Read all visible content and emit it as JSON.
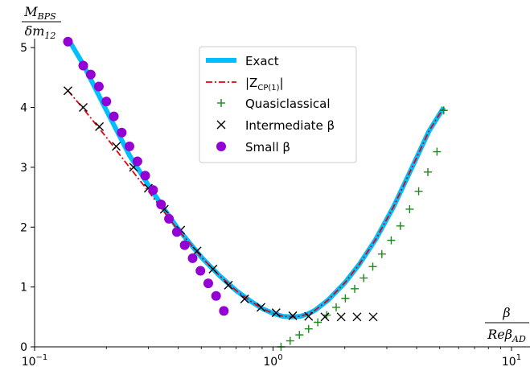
{
  "chart_data": {
    "type": "line",
    "xscale": "log",
    "xlim": [
      0.1,
      10
    ],
    "ylim": [
      0,
      5.15
    ],
    "x_ticks": [
      {
        "value": 0.1,
        "base": "10",
        "exp": "−1"
      },
      {
        "value": 1,
        "base": "10",
        "exp": "0"
      },
      {
        "value": 10,
        "base": "10",
        "exp": "1"
      }
    ],
    "y_ticks": [
      0,
      1,
      2,
      3,
      4,
      5
    ],
    "y_tick_labels": [
      "0",
      "1",
      "2",
      "3",
      "4",
      "5"
    ],
    "xlabel": {
      "numerator": "β",
      "denominator": "Reβ",
      "denominator_sub": "AD"
    },
    "ylabel": {
      "numerator": "M",
      "numerator_sub": "BPS",
      "denominator": "δm",
      "denominator_sub": "12"
    },
    "grid": false,
    "legend_position": "top-center",
    "legend": [
      {
        "key": "exact",
        "label": "Exact"
      },
      {
        "key": "zcp",
        "label_prefix": "|Z",
        "label_sub": "CP(1)",
        "label_suffix": "|"
      },
      {
        "key": "quasi",
        "label": "Quasiclassical"
      },
      {
        "key": "inter",
        "label": "Intermediate β"
      },
      {
        "key": "small",
        "label": "Small β"
      }
    ],
    "series": [
      {
        "key": "exact",
        "style": "line",
        "color": "#00bfff",
        "x": [
          0.138,
          0.16,
          0.2,
          0.25,
          0.3,
          0.35,
          0.4,
          0.45,
          0.5,
          0.55,
          0.6,
          0.7,
          0.8,
          0.9,
          1.0,
          1.1,
          1.2,
          1.3,
          1.4,
          1.5,
          1.7,
          2.0,
          2.3,
          2.7,
          3.2,
          3.8,
          4.5,
          5.2
        ],
        "y": [
          5.15,
          4.72,
          3.95,
          3.2,
          2.7,
          2.3,
          1.97,
          1.72,
          1.5,
          1.33,
          1.18,
          0.94,
          0.77,
          0.64,
          0.56,
          0.51,
          0.5,
          0.51,
          0.55,
          0.61,
          0.78,
          1.07,
          1.38,
          1.8,
          2.34,
          2.97,
          3.6,
          4.0
        ]
      },
      {
        "key": "zcp",
        "style": "dashdot",
        "color": "#e8000b",
        "x": [
          0.138,
          0.16,
          0.2,
          0.25,
          0.3,
          0.35,
          0.4,
          0.45,
          0.5,
          0.55,
          0.6,
          0.7,
          0.8,
          0.9,
          1.0,
          1.1,
          1.2,
          1.3,
          1.4,
          1.5,
          1.7,
          2.0,
          2.3,
          2.7,
          3.2,
          3.8,
          4.5,
          5.2
        ],
        "y": [
          4.28,
          3.98,
          3.5,
          3.0,
          2.6,
          2.25,
          1.95,
          1.72,
          1.5,
          1.33,
          1.18,
          0.94,
          0.77,
          0.64,
          0.56,
          0.51,
          0.5,
          0.51,
          0.55,
          0.61,
          0.78,
          1.07,
          1.38,
          1.8,
          2.34,
          2.97,
          3.6,
          4.0
        ]
      },
      {
        "key": "quasi",
        "style": "plus",
        "color": "#1a8a1a",
        "x": [
          1.08,
          1.18,
          1.29,
          1.41,
          1.54,
          1.68,
          1.84,
          2.01,
          2.2,
          2.4,
          2.62,
          2.86,
          3.13,
          3.42,
          3.74,
          4.08,
          4.46,
          4.87,
          5.2
        ],
        "y": [
          0.0,
          0.1,
          0.2,
          0.3,
          0.41,
          0.53,
          0.66,
          0.81,
          0.97,
          1.15,
          1.34,
          1.55,
          1.78,
          2.02,
          2.3,
          2.6,
          2.92,
          3.26,
          3.95
        ]
      },
      {
        "key": "inter",
        "style": "x",
        "color": "#000000",
        "x": [
          0.138,
          0.16,
          0.187,
          0.22,
          0.26,
          0.3,
          0.35,
          0.41,
          0.48,
          0.56,
          0.65,
          0.76,
          0.89,
          1.03,
          1.21,
          1.41,
          1.65,
          1.93,
          2.25,
          2.63
        ],
        "y": [
          4.28,
          4.0,
          3.68,
          3.35,
          3.0,
          2.65,
          2.3,
          1.95,
          1.6,
          1.3,
          1.03,
          0.8,
          0.66,
          0.57,
          0.52,
          0.51,
          0.5,
          0.5,
          0.5,
          0.5
        ]
      },
      {
        "key": "small",
        "style": "circle",
        "color": "#9400d3",
        "x": [
          0.138,
          0.16,
          0.172,
          0.186,
          0.2,
          0.215,
          0.232,
          0.25,
          0.27,
          0.291,
          0.314,
          0.339,
          0.366,
          0.395,
          0.426,
          0.46,
          0.496,
          0.535,
          0.577,
          0.622
        ],
        "y": [
          5.1,
          4.7,
          4.55,
          4.35,
          4.1,
          3.85,
          3.58,
          3.35,
          3.1,
          2.86,
          2.62,
          2.38,
          2.14,
          1.92,
          1.7,
          1.48,
          1.27,
          1.06,
          0.85,
          0.6
        ]
      }
    ]
  }
}
